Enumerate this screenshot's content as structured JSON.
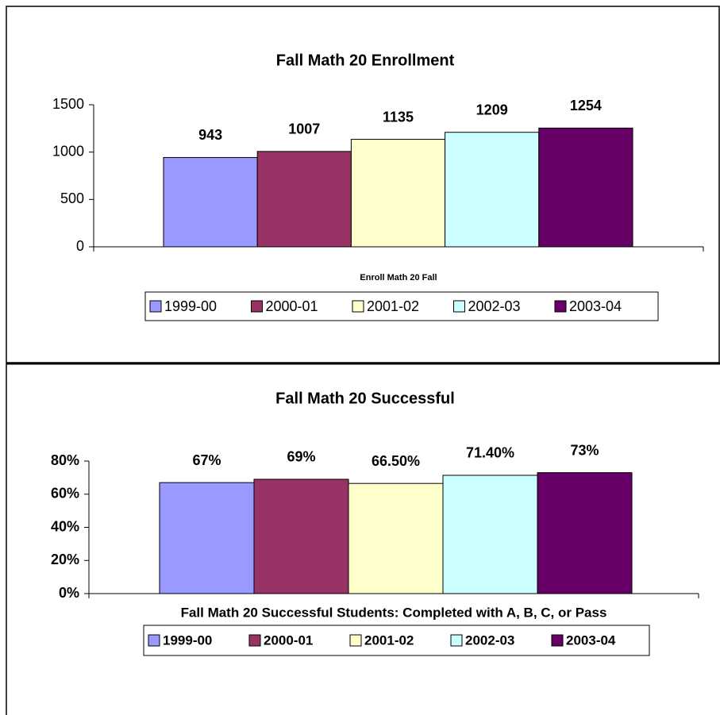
{
  "chart_data": [
    {
      "type": "bar",
      "title": "Fall Math 20 Enrollment",
      "x_label": "Enroll Math 20 Fall",
      "ylim": [
        0,
        1500
      ],
      "yticks": [
        0,
        500,
        1000,
        1500
      ],
      "legend": "bottom",
      "series": [
        {
          "name": "1999-00",
          "color": "#9999ff",
          "values": [
            943
          ]
        },
        {
          "name": "2000-01",
          "color": "#993366",
          "values": [
            1007
          ]
        },
        {
          "name": "2001-02",
          "color": "#ffffcc",
          "values": [
            1135
          ]
        },
        {
          "name": "2002-03",
          "color": "#ccffff",
          "values": [
            1209
          ]
        },
        {
          "name": "2003-04",
          "color": "#660066",
          "values": [
            1254
          ]
        }
      ]
    },
    {
      "type": "bar",
      "title": "Fall Math 20 Successful",
      "x_label": "Fall Math 20 Successful Students:  Completed with A, B, C, or Pass",
      "ylim": [
        0,
        80
      ],
      "yticks": [
        {
          "value": 0,
          "label": "0%"
        },
        {
          "value": 20,
          "label": "20%"
        },
        {
          "value": 40,
          "label": "40%"
        },
        {
          "value": 60,
          "label": "60%"
        },
        {
          "value": 80,
          "label": "80%"
        }
      ],
      "legend": "bottom",
      "series": [
        {
          "name": "1999-00",
          "color": "#9999ff",
          "values": [
            67
          ],
          "value_labels": [
            "67%"
          ]
        },
        {
          "name": "2000-01",
          "color": "#993366",
          "values": [
            69
          ],
          "value_labels": [
            "69%"
          ]
        },
        {
          "name": "2001-02",
          "color": "#ffffcc",
          "values": [
            66.5
          ],
          "value_labels": [
            "66.50%"
          ]
        },
        {
          "name": "2002-03",
          "color": "#ccffff",
          "values": [
            71.4
          ],
          "value_labels": [
            "71.40%"
          ]
        },
        {
          "name": "2003-04",
          "color": "#660066",
          "values": [
            73
          ],
          "value_labels": [
            "73%"
          ]
        }
      ]
    }
  ]
}
